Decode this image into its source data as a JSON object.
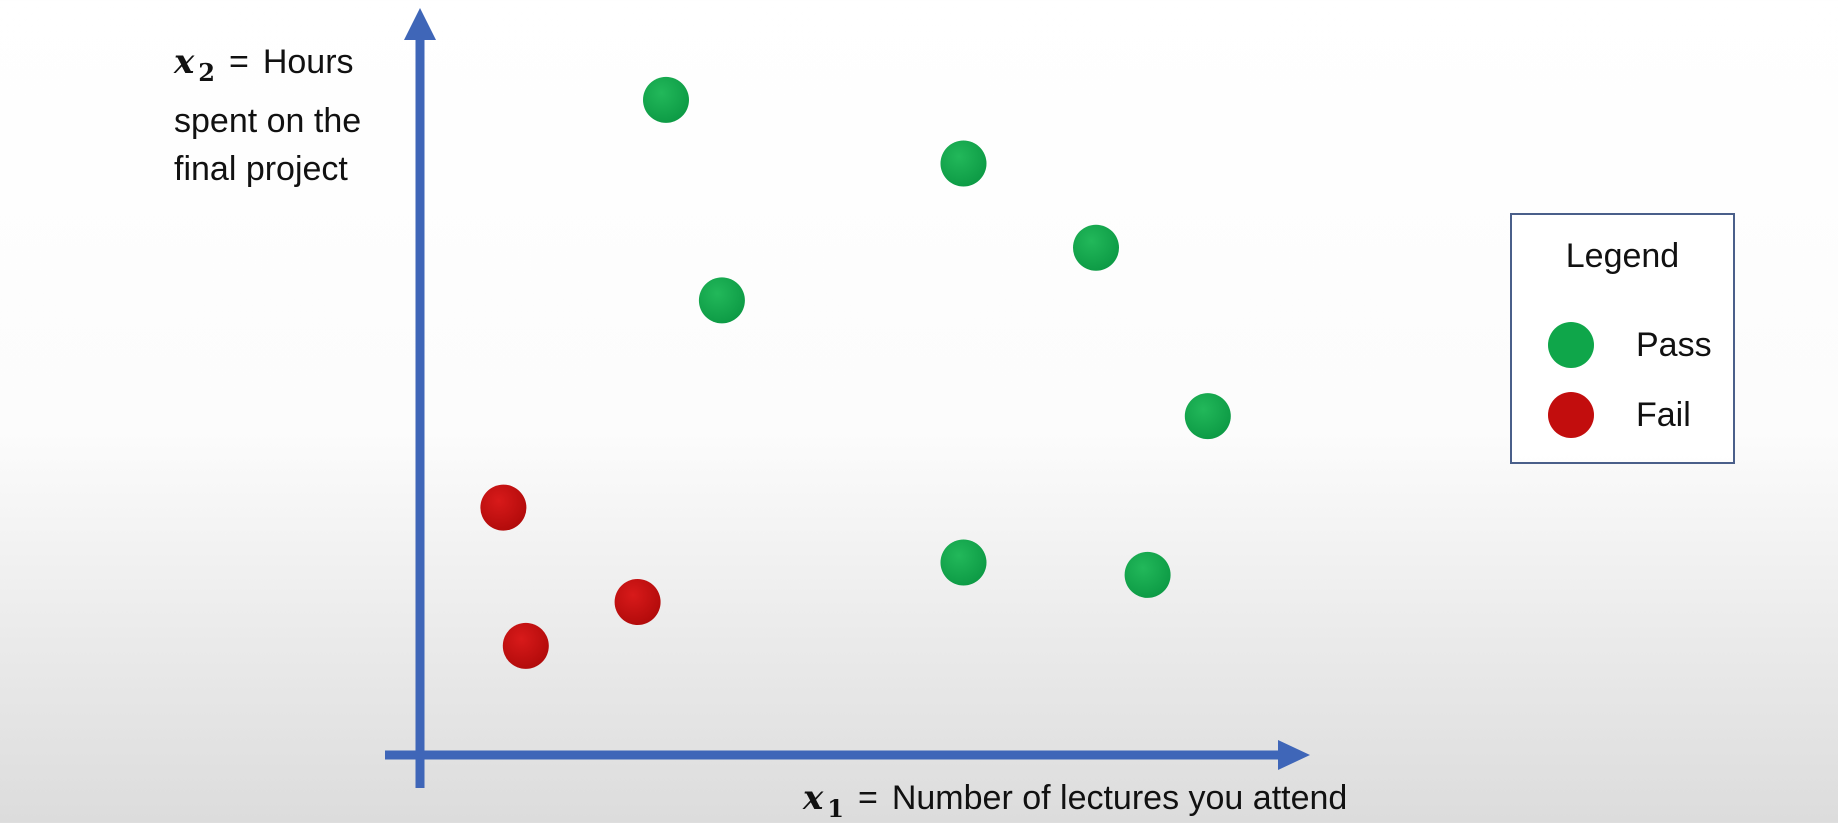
{
  "colors": {
    "axis": "#3f66b8",
    "pass": "#0fa64a",
    "fail": "#c20d0d"
  },
  "chart_data": {
    "type": "scatter",
    "title": "",
    "xlabel": {
      "var": "x",
      "sub": "1",
      "eq": "=",
      "text": "Number of lectures you attend"
    },
    "ylabel": {
      "var": "x",
      "sub": "2",
      "eq": "=",
      "lines": [
        "Hours",
        "spent on the",
        "final project"
      ]
    },
    "xlim": [
      0,
      100
    ],
    "ylim": [
      0,
      100
    ],
    "grid": false,
    "ticks": false,
    "legend": {
      "title": "Legend",
      "position": "right",
      "items": [
        {
          "label": "Pass",
          "color": "#0fa64a"
        },
        {
          "label": "Fail",
          "color": "#c20d0d"
        }
      ]
    },
    "series": [
      {
        "name": "Pass",
        "color": "#0fa64a",
        "points": [
          {
            "x": 28.6,
            "y": 89.5
          },
          {
            "x": 35.1,
            "y": 62.1
          },
          {
            "x": 63.2,
            "y": 80.8
          },
          {
            "x": 78.6,
            "y": 69.3
          },
          {
            "x": 91.6,
            "y": 46.3
          },
          {
            "x": 63.2,
            "y": 26.3
          },
          {
            "x": 84.6,
            "y": 24.6
          }
        ]
      },
      {
        "name": "Fail",
        "color": "#c20d0d",
        "points": [
          {
            "x": 9.7,
            "y": 33.8
          },
          {
            "x": 12.3,
            "y": 14.9
          },
          {
            "x": 25.3,
            "y": 20.9
          }
        ]
      }
    ]
  }
}
